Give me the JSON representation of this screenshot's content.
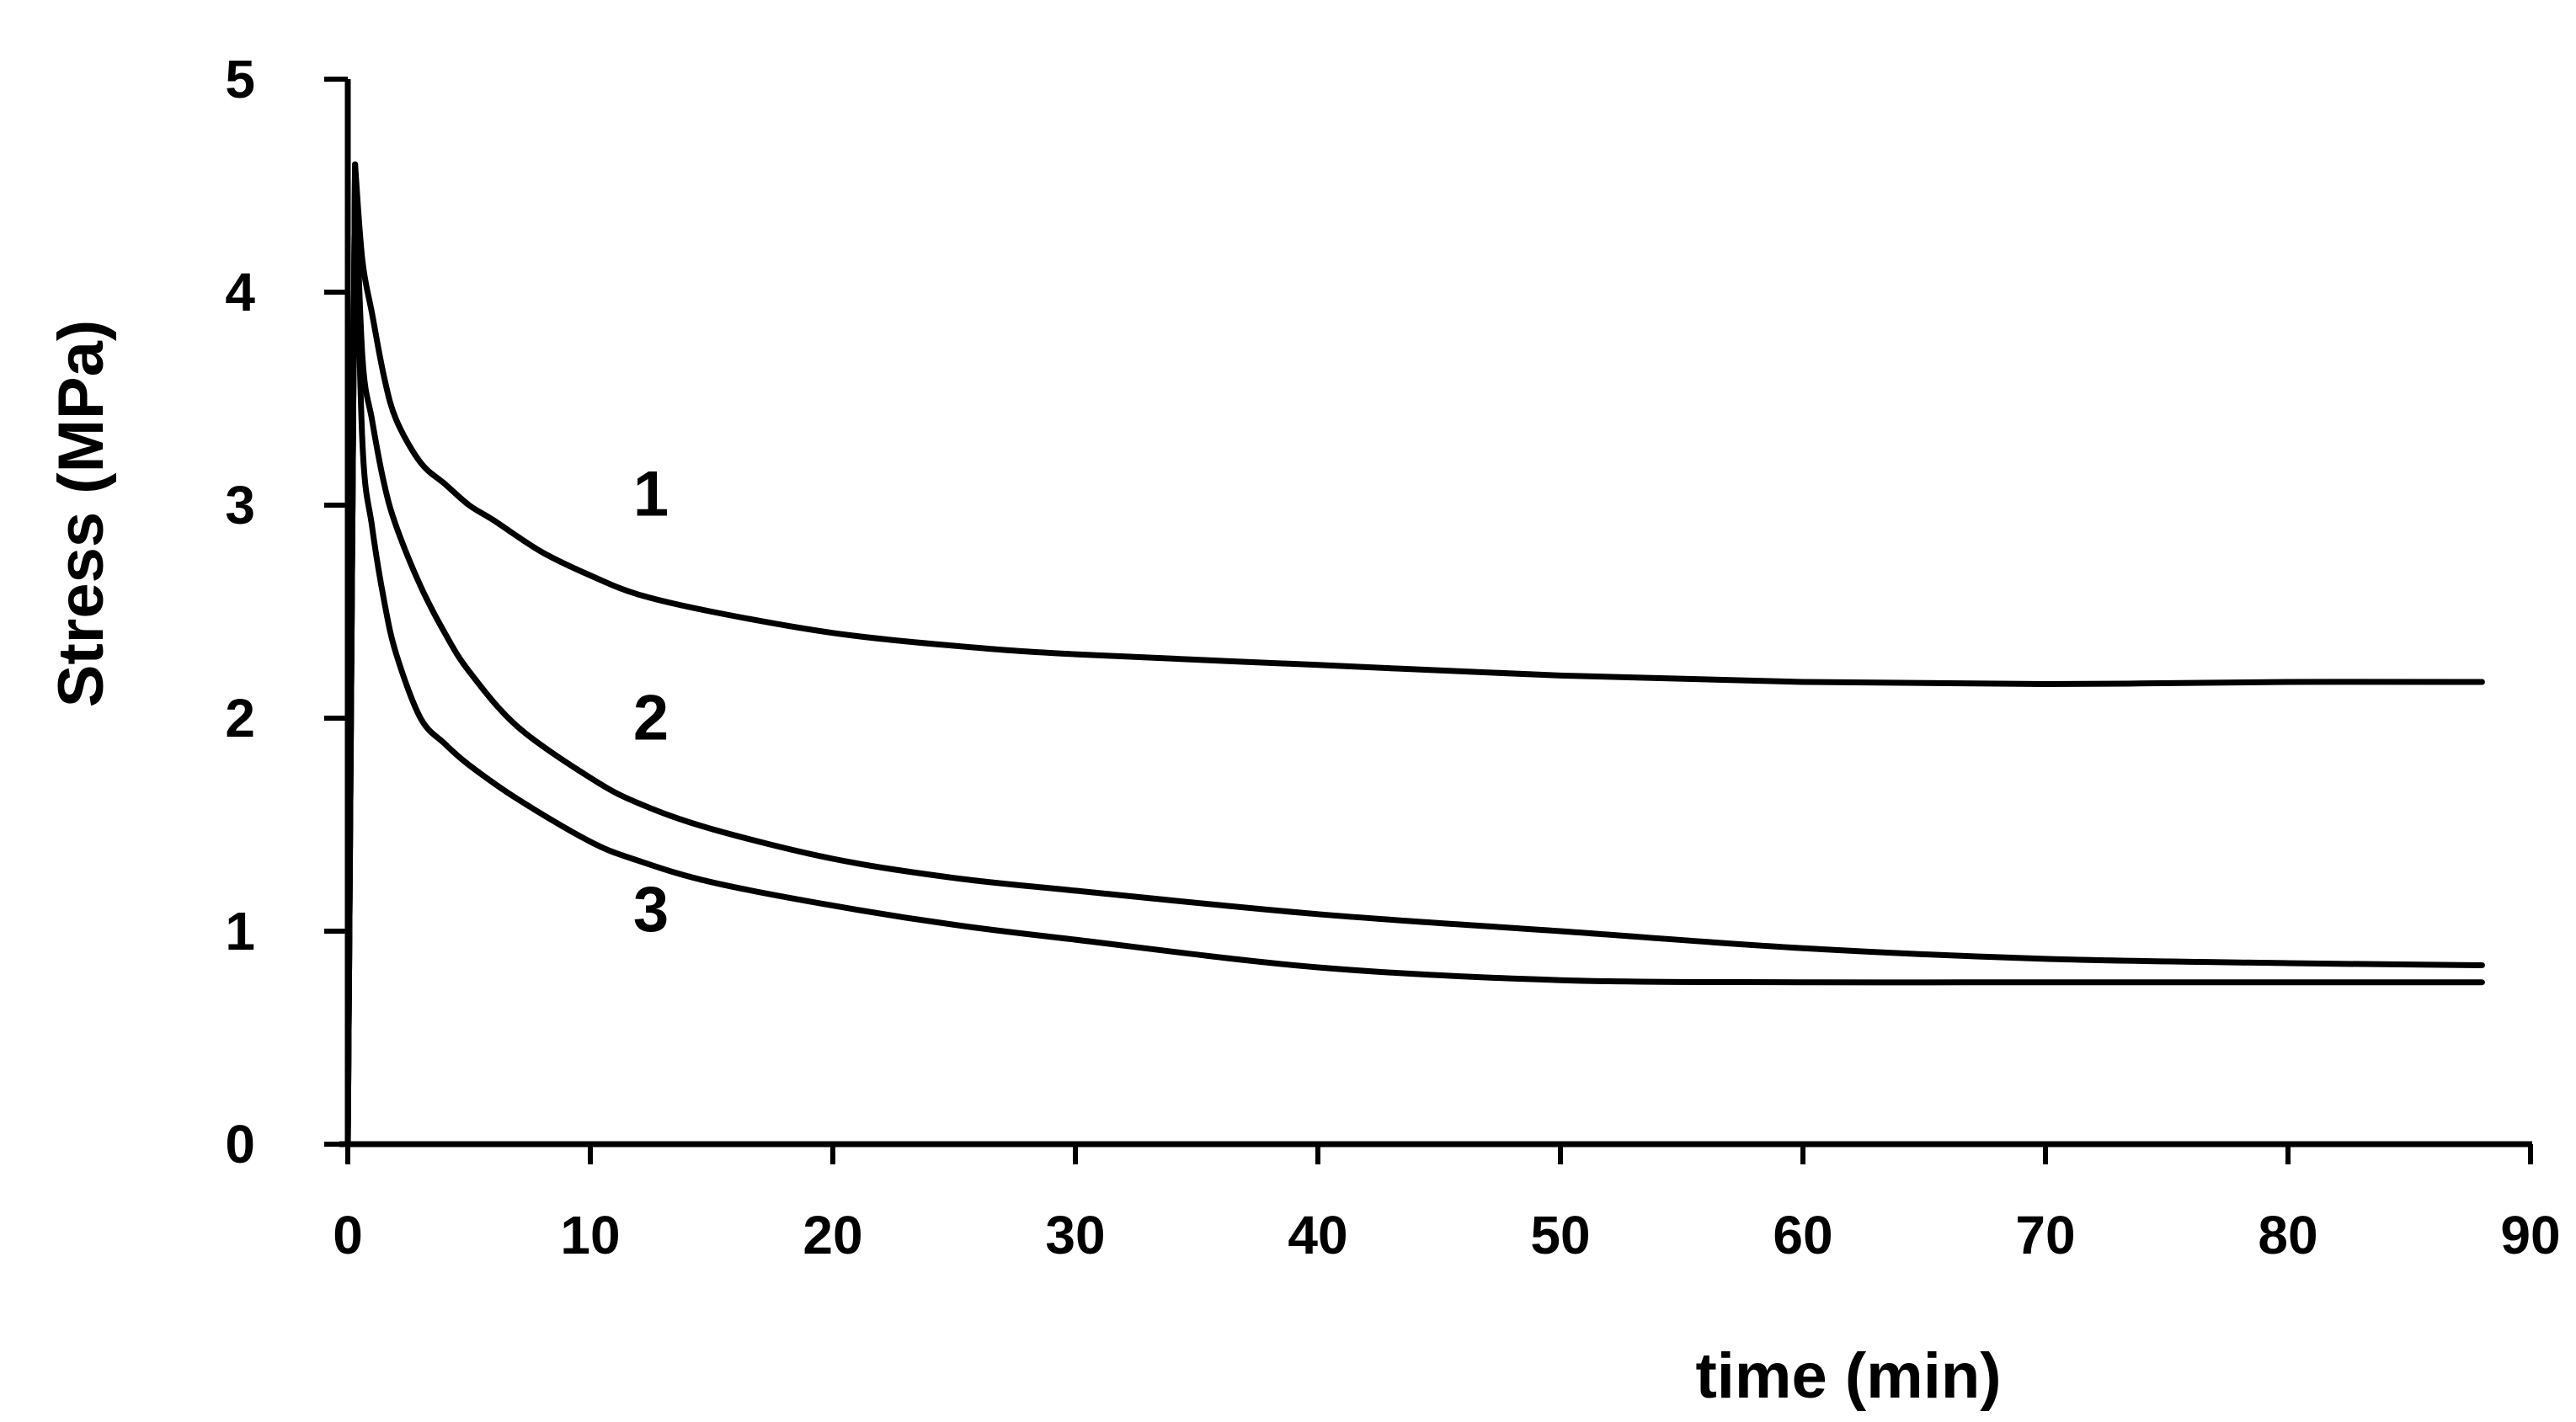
{
  "chart_data": {
    "type": "line",
    "xlabel": "time (min)",
    "ylabel": "Stress (MPa)",
    "xlim": [
      0,
      90
    ],
    "ylim": [
      0,
      5
    ],
    "xticks": [
      "0",
      "10",
      "20",
      "30",
      "40",
      "50",
      "60",
      "70",
      "80",
      "90"
    ],
    "yticks": [
      "0",
      "1",
      "2",
      "3",
      "4",
      "5"
    ],
    "grid": false,
    "legend": "none",
    "line_color": "#000000",
    "series": [
      {
        "name": "1",
        "x": [
          0,
          0.3,
          0.6,
          1,
          1.5,
          2,
          3,
          4,
          5,
          6,
          8,
          10,
          12,
          15,
          20,
          25,
          30,
          40,
          50,
          60,
          70,
          80,
          88
        ],
        "y": [
          0,
          4.6,
          4.15,
          3.9,
          3.6,
          3.4,
          3.2,
          3.1,
          3.0,
          2.93,
          2.78,
          2.67,
          2.58,
          2.5,
          2.4,
          2.34,
          2.3,
          2.25,
          2.2,
          2.17,
          2.16,
          2.17,
          2.17
        ]
      },
      {
        "name": "2",
        "x": [
          0,
          0.3,
          0.6,
          1,
          1.5,
          2,
          3,
          4,
          5,
          7,
          10,
          12,
          15,
          20,
          25,
          30,
          40,
          50,
          60,
          70,
          80,
          88
        ],
        "y": [
          0,
          4.6,
          3.7,
          3.4,
          3.1,
          2.9,
          2.62,
          2.4,
          2.22,
          1.96,
          1.72,
          1.6,
          1.48,
          1.34,
          1.25,
          1.19,
          1.08,
          1.0,
          0.92,
          0.87,
          0.85,
          0.84
        ]
      },
      {
        "name": "3",
        "x": [
          0,
          0.3,
          0.6,
          1,
          1.5,
          2,
          3,
          4,
          5,
          7,
          10,
          12,
          15,
          20,
          25,
          30,
          40,
          50,
          60,
          70,
          80,
          88
        ],
        "y": [
          0,
          4.6,
          3.3,
          2.9,
          2.55,
          2.3,
          2.0,
          1.88,
          1.78,
          1.62,
          1.42,
          1.33,
          1.23,
          1.12,
          1.03,
          0.96,
          0.83,
          0.77,
          0.76,
          0.76,
          0.76,
          0.76
        ]
      }
    ],
    "series_label_positions": [
      {
        "name": "1",
        "x": 12.5,
        "y": 2.95
      },
      {
        "name": "2",
        "x": 12.5,
        "y": 1.9
      },
      {
        "name": "3",
        "x": 12.5,
        "y": 1.0
      }
    ]
  }
}
